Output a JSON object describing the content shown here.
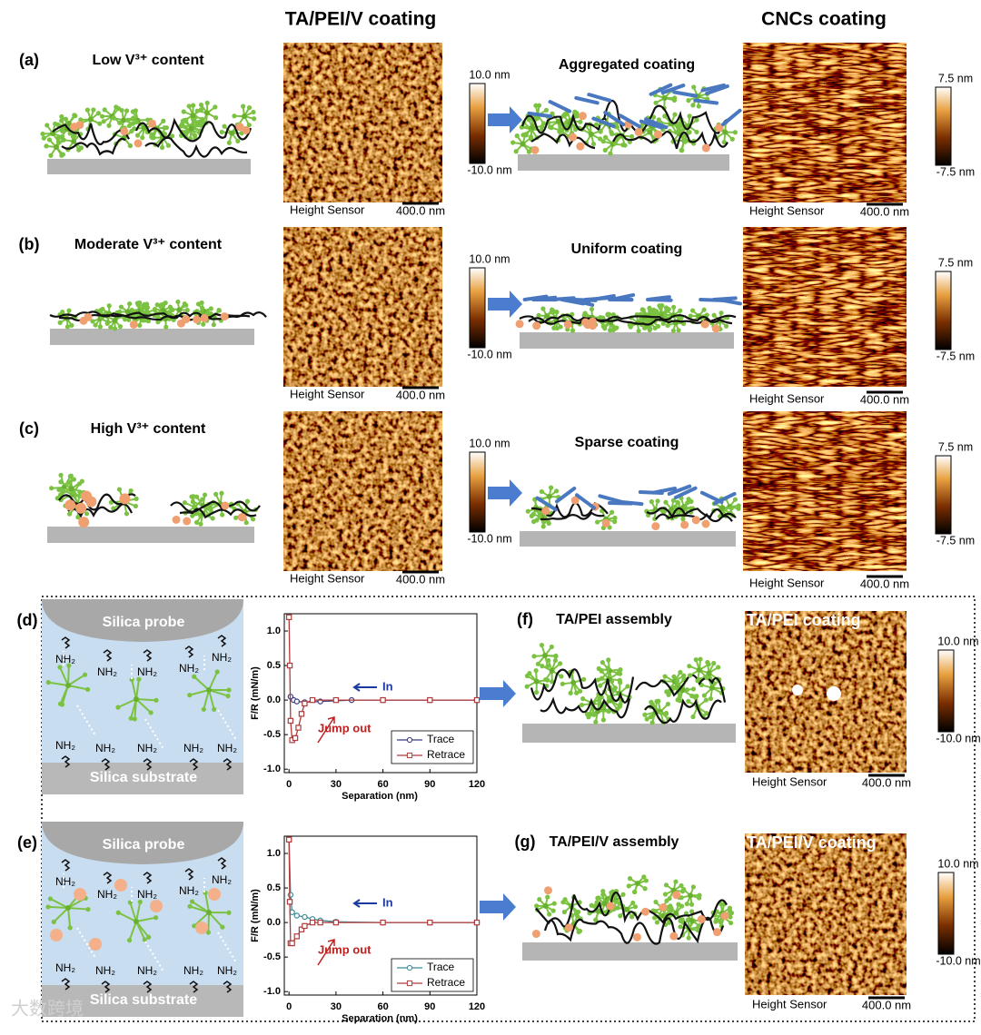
{
  "headers": {
    "left": "TA/PEI/V coating",
    "right": "CNCs coating"
  },
  "rows": [
    {
      "label": "(a)",
      "condition": "Low V³⁺ content",
      "afm1": {
        "sensor": "Height Sensor",
        "scale": "400.0 nm",
        "cbar_max": "10.0 nm",
        "cbar_min": "-10.0 nm"
      },
      "result": "Aggregated coating",
      "afm2": {
        "sensor": "Height Sensor",
        "scale": "400.0 nm",
        "cbar_max": "7.5 nm",
        "cbar_min": "-7.5 nm"
      }
    },
    {
      "label": "(b)",
      "condition": "Moderate V³⁺ content",
      "afm1": {
        "sensor": "Height Sensor",
        "scale": "400.0 nm",
        "cbar_max": "10.0 nm",
        "cbar_min": "-10.0 nm"
      },
      "result": "Uniform coating",
      "afm2": {
        "sensor": "Height Sensor",
        "scale": "400.0 nm",
        "cbar_max": "7.5 nm",
        "cbar_min": "-7.5 nm"
      }
    },
    {
      "label": "(c)",
      "condition": "High V³⁺ content",
      "afm1": {
        "sensor": "Height Sensor",
        "scale": "400.0 nm",
        "cbar_max": "10.0 nm",
        "cbar_min": "-10.0 nm"
      },
      "result": "Sparse coating",
      "afm2": {
        "sensor": "Height Sensor",
        "scale": "400.0 nm",
        "cbar_max": "7.5 nm",
        "cbar_min": "-7.5 nm"
      }
    }
  ],
  "force_panels": [
    {
      "label": "(d)",
      "probe": "Silica probe",
      "substrate": "Silica substrate",
      "amine": "NH₂",
      "plot": {
        "type": "line",
        "x_label": "Separation (nm)",
        "y_label": "F/R (mN/m)",
        "xlim": [
          -3,
          120
        ],
        "ylim": [
          -1.05,
          1.25
        ],
        "xticks": [
          0,
          30,
          60,
          90,
          120
        ],
        "yticks": [
          {
            "value": -1,
            "label": "-1.0"
          },
          {
            "value": -0.5,
            "label": "-0.5"
          },
          {
            "value": 0,
            "label": "0.0"
          },
          {
            "value": 0.5,
            "label": "0.5"
          },
          {
            "value": 1,
            "label": "1.0"
          }
        ],
        "series": [
          {
            "name": "Trace",
            "color": "#3a3a80",
            "marker": "circle",
            "x": [
              1,
              3,
              5,
              10,
              20,
              40,
              60,
              90,
              120
            ],
            "values": [
              0.05,
              0,
              -0.02,
              -0.03,
              -0.02,
              0,
              0,
              0,
              0
            ]
          },
          {
            "name": "Retrace",
            "color": "#b03a3a",
            "marker": "square",
            "x": [
              0,
              0.5,
              1,
              2,
              4,
              6,
              8,
              10,
              15,
              30,
              60,
              90,
              120
            ],
            "values": [
              1.2,
              0.5,
              -0.3,
              -0.58,
              -0.55,
              -0.4,
              -0.2,
              -0.05,
              0,
              0,
              0,
              0,
              0
            ]
          }
        ],
        "annotations": {
          "in": "In",
          "jump": "Jump out"
        }
      },
      "assembly": {
        "label": "(f)",
        "title": "TA/PEI assembly",
        "image_title": "TA/PEI coating",
        "sensor": "Height Sensor",
        "scale": "400.0 nm",
        "cbar_max": "10.0 nm",
        "cbar_min": "-10.0 nm"
      }
    },
    {
      "label": "(e)",
      "probe": "Silica probe",
      "substrate": "Silica substrate",
      "amine": "NH₂",
      "plot": {
        "type": "line",
        "x_label": "Separation (nm)",
        "y_label": "F/R (mN/m)",
        "xlim": [
          -3,
          120
        ],
        "ylim": [
          -1.05,
          1.25
        ],
        "xticks": [
          0,
          30,
          60,
          90,
          120
        ],
        "yticks": [
          {
            "value": -1,
            "label": "-1.0"
          },
          {
            "value": -0.5,
            "label": "-0.5"
          },
          {
            "value": 0,
            "label": "0.0"
          },
          {
            "value": 0.5,
            "label": "0.5"
          },
          {
            "value": 1,
            "label": "1.0"
          }
        ],
        "series": [
          {
            "name": "Trace",
            "color": "#3a8a9a",
            "marker": "circle",
            "x": [
              0,
              1,
              2,
              5,
              10,
              15,
              20,
              30,
              60,
              90,
              120
            ],
            "values": [
              1.2,
              0.4,
              0.15,
              0.1,
              0.08,
              0.05,
              0.03,
              0.01,
              0,
              0,
              0
            ]
          },
          {
            "name": "Retrace",
            "color": "#b03a3a",
            "marker": "square",
            "x": [
              0,
              0.5,
              1,
              2,
              5,
              8,
              10,
              15,
              20,
              30,
              60,
              90,
              120
            ],
            "values": [
              1.2,
              0.3,
              -0.3,
              -0.3,
              -0.2,
              -0.1,
              -0.05,
              0,
              0,
              0,
              0,
              0,
              0
            ]
          }
        ],
        "annotations": {
          "in": "In",
          "jump": "Jump out"
        }
      },
      "assembly": {
        "label": "(g)",
        "title": "TA/PEI/V assembly",
        "image_title": "TA/PEI/V coating",
        "sensor": "Height Sensor",
        "scale": "400.0 nm",
        "cbar_max": "10.0 nm",
        "cbar_min": "-10.0 nm"
      }
    }
  ],
  "watermark": "大数跨境"
}
